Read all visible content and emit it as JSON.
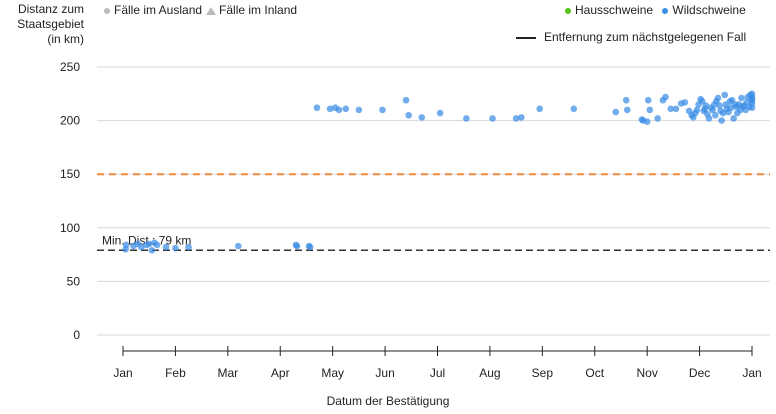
{
  "chart_data": {
    "type": "scatter",
    "title": "",
    "ylabel_lines": [
      "Distanz zum",
      "Staatsgebiet",
      "(in km)"
    ],
    "xlabel": "Datum der Bestätigung",
    "ylim": [
      0,
      250
    ],
    "yticks": [
      0,
      50,
      100,
      150,
      200,
      250
    ],
    "xlim": [
      0,
      12
    ],
    "x_unit": "month index from January of the displayed year (0 = Jan, 12 = following Jan)",
    "xtick_labels": [
      "Jan",
      "Feb",
      "Mar",
      "Apr",
      "May",
      "Jun",
      "Jul",
      "Aug",
      "Sep",
      "Oct",
      "Nov",
      "Dec",
      "Jan"
    ],
    "grid": "horizontal",
    "shape_legend": [
      {
        "label": "Fälle im Ausland",
        "shape": "circle"
      },
      {
        "label": "Fälle im Inland",
        "shape": "triangle"
      }
    ],
    "color_legend": [
      {
        "label": "Hausschweine",
        "color": "#52c41a"
      },
      {
        "label": "Wildschweine",
        "color": "#3a8ee6"
      }
    ],
    "line_legend": "Entfernung zum nächstgelegenen Fall",
    "reference_lines": [
      {
        "y": 150,
        "color": "#f0883e",
        "style": "dashed"
      },
      {
        "y": 79,
        "color": "#333333",
        "style": "dashed",
        "label": "Min. Dist.: 79 km"
      }
    ],
    "series": [
      {
        "name": "Wildschweine",
        "color": "#3a8ee6",
        "points": [
          [
            0.05,
            80
          ],
          [
            0.06,
            84
          ],
          [
            0.2,
            83
          ],
          [
            0.28,
            85
          ],
          [
            0.35,
            82
          ],
          [
            0.45,
            84
          ],
          [
            0.5,
            85
          ],
          [
            0.55,
            79
          ],
          [
            0.6,
            86
          ],
          [
            0.65,
            84
          ],
          [
            0.82,
            82
          ],
          [
            1.0,
            81
          ],
          [
            1.25,
            82
          ],
          [
            2.2,
            83
          ],
          [
            3.3,
            84
          ],
          [
            3.32,
            83
          ],
          [
            3.55,
            83
          ],
          [
            3.57,
            82
          ],
          [
            3.7,
            212
          ],
          [
            3.95,
            211
          ],
          [
            4.05,
            212
          ],
          [
            4.12,
            210
          ],
          [
            4.25,
            211
          ],
          [
            4.5,
            210
          ],
          [
            4.95,
            210
          ],
          [
            5.4,
            219
          ],
          [
            5.45,
            205
          ],
          [
            5.7,
            203
          ],
          [
            6.05,
            207
          ],
          [
            6.55,
            202
          ],
          [
            7.05,
            202
          ],
          [
            7.5,
            202
          ],
          [
            7.6,
            203
          ],
          [
            7.95,
            211
          ],
          [
            8.6,
            211
          ],
          [
            9.4,
            208
          ],
          [
            9.6,
            219
          ],
          [
            9.62,
            210
          ],
          [
            9.9,
            201
          ],
          [
            9.92,
            200
          ],
          [
            10.0,
            199
          ],
          [
            10.02,
            219
          ],
          [
            10.05,
            210
          ],
          [
            10.2,
            202
          ],
          [
            10.3,
            219
          ],
          [
            10.35,
            222
          ],
          [
            10.45,
            211
          ],
          [
            10.55,
            211
          ],
          [
            10.65,
            216
          ],
          [
            10.72,
            217
          ],
          [
            10.8,
            209
          ],
          [
            10.85,
            205
          ],
          [
            10.88,
            203
          ],
          [
            10.92,
            207
          ],
          [
            10.95,
            210
          ],
          [
            10.98,
            215
          ],
          [
            11.02,
            220
          ],
          [
            11.05,
            218
          ],
          [
            11.08,
            209
          ],
          [
            11.1,
            211
          ],
          [
            11.12,
            214
          ],
          [
            11.15,
            206
          ],
          [
            11.18,
            202
          ],
          [
            11.22,
            212
          ],
          [
            11.25,
            210
          ],
          [
            11.28,
            215
          ],
          [
            11.3,
            205
          ],
          [
            11.32,
            218
          ],
          [
            11.35,
            221
          ],
          [
            11.38,
            214
          ],
          [
            11.4,
            209
          ],
          [
            11.42,
            200
          ],
          [
            11.45,
            207
          ],
          [
            11.48,
            224
          ],
          [
            11.5,
            215
          ],
          [
            11.52,
            211
          ],
          [
            11.55,
            208
          ],
          [
            11.58,
            218
          ],
          [
            11.6,
            212
          ],
          [
            11.62,
            219
          ],
          [
            11.65,
            202
          ],
          [
            11.68,
            215
          ],
          [
            11.7,
            213
          ],
          [
            11.72,
            207
          ],
          [
            11.75,
            215
          ],
          [
            11.78,
            210
          ],
          [
            11.8,
            221
          ],
          [
            11.82,
            213
          ],
          [
            11.85,
            214
          ],
          [
            11.88,
            210
          ],
          [
            11.9,
            217
          ],
          [
            11.92,
            222
          ],
          [
            11.95,
            213
          ],
          [
            11.97,
            224
          ],
          [
            12.0,
            219
          ],
          [
            12.0,
            212
          ],
          [
            12.0,
            216
          ],
          [
            12.0,
            225
          ],
          [
            12.0,
            222
          ],
          [
            12.0,
            220
          ]
        ]
      }
    ]
  }
}
